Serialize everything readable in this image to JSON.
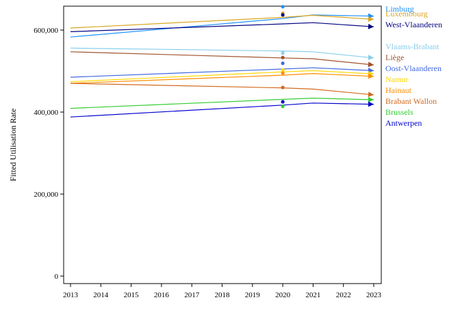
{
  "chart_data": {
    "type": "line",
    "title": "",
    "xlabel": "",
    "ylabel": "Fitted Utilisation Rate",
    "xlim": [
      2013,
      2023
    ],
    "ylim": [
      0,
      660000
    ],
    "x_ticks": [
      2013,
      2014,
      2015,
      2016,
      2017,
      2018,
      2019,
      2020,
      2021,
      2022,
      2023
    ],
    "y_ticks": [
      0,
      200000,
      400000,
      600000
    ],
    "y_tick_labels": [
      "0",
      "200,000",
      "400,000",
      "600,000"
    ],
    "x_points": [
      2013,
      2020,
      2021,
      2023
    ],
    "grid": false,
    "legend_position": "right",
    "series": [
      {
        "name": "Limburg",
        "color": "#1e90ff",
        "values": [
          583000,
          628000,
          637000,
          634000
        ],
        "observed": {
          "x": 2020,
          "y": 657000
        }
      },
      {
        "name": "Luxembourg",
        "color": "#daa520",
        "values": [
          605000,
          631000,
          636000,
          626000
        ],
        "observed": {
          "x": 2020,
          "y": 641000
        }
      },
      {
        "name": "West-Vlaanderen",
        "color": "#000080",
        "values": [
          596000,
          615000,
          618000,
          608000
        ],
        "observed": {
          "x": 2020,
          "y": 637000
        }
      },
      {
        "name": "Vlaams-Brabant",
        "color": "#87ceeb",
        "values": [
          556000,
          549000,
          547000,
          532000
        ],
        "observed": {
          "x": 2020,
          "y": 544000
        }
      },
      {
        "name": "Liège",
        "color": "#a0522d",
        "values": [
          547000,
          532000,
          530000,
          515000
        ],
        "observed": {
          "x": 2020,
          "y": 533000
        }
      },
      {
        "name": "Oost-Vlaanderen",
        "color": "#4169e1",
        "values": [
          485000,
          505000,
          508000,
          501000
        ],
        "observed": {
          "x": 2020,
          "y": 519000
        }
      },
      {
        "name": "Namur",
        "color": "#ffd700",
        "values": [
          474000,
          498000,
          501000,
          493000
        ],
        "observed": {
          "x": 2020,
          "y": 503000
        }
      },
      {
        "name": "Hainaut",
        "color": "#ff8c00",
        "values": [
          470000,
          490000,
          494000,
          487000
        ],
        "observed": {
          "x": 2020,
          "y": 495000
        }
      },
      {
        "name": "Brabant Wallon",
        "color": "#d2691e",
        "values": [
          470000,
          459000,
          456000,
          442000
        ],
        "observed": {
          "x": 2020,
          "y": 460000
        }
      },
      {
        "name": "Brussels",
        "color": "#32cd32",
        "values": [
          409000,
          431000,
          434000,
          430000
        ],
        "observed": {
          "x": 2020,
          "y": 414000
        }
      },
      {
        "name": "Antwerpen",
        "color": "#0000cd",
        "values": [
          388000,
          417000,
          422000,
          419000
        ],
        "observed": {
          "x": 2020,
          "y": 425000
        }
      }
    ]
  }
}
